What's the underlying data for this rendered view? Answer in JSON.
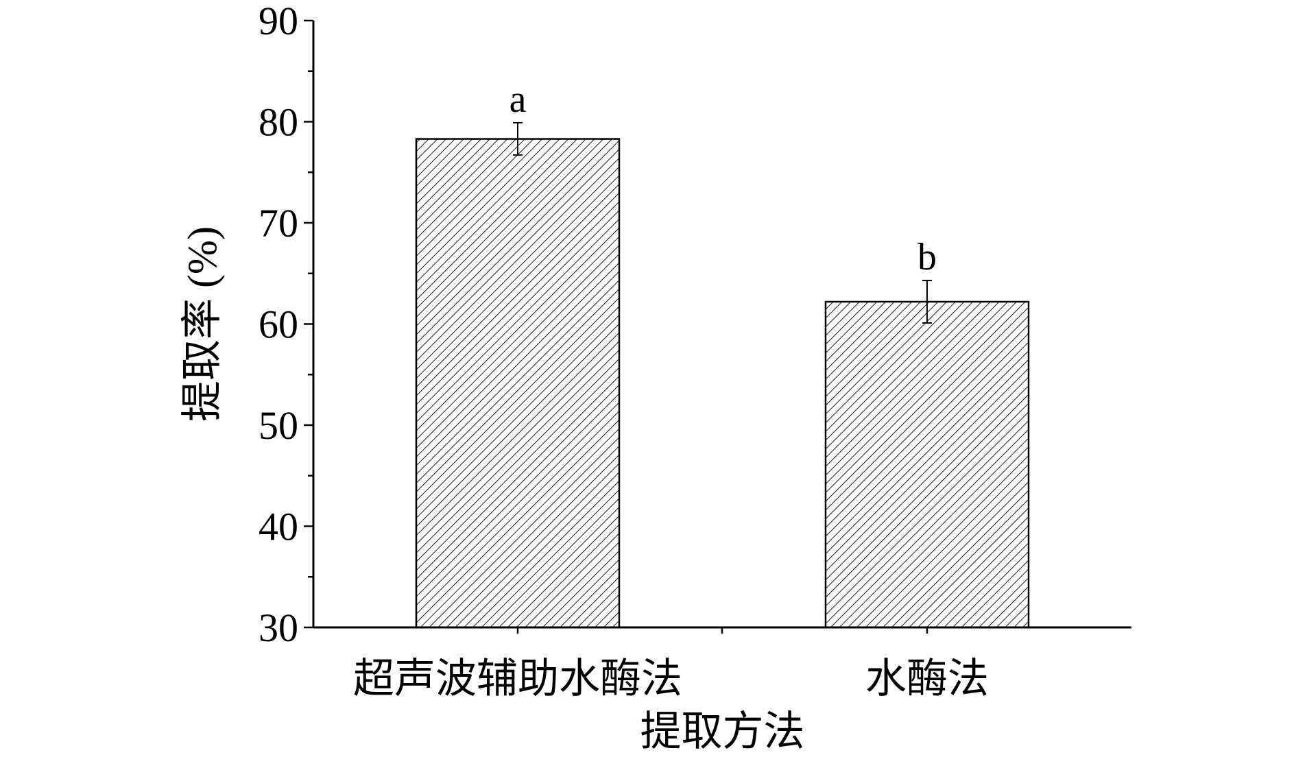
{
  "chart_data": {
    "type": "bar",
    "title": "",
    "xlabel": "提取方法",
    "ylabel": "提取率 (%)",
    "categories": [
      "超声波辅助水酶法",
      "水酶法"
    ],
    "series": [
      {
        "values": [
          78.3,
          62.2
        ],
        "errors": [
          1.6,
          2.1
        ],
        "significance": [
          "a",
          "b"
        ]
      }
    ],
    "ylim": [
      30,
      90
    ],
    "yticks": [
      30,
      40,
      50,
      60,
      70,
      80,
      90
    ],
    "grid": false,
    "legend": "none",
    "bar_fill": "diagonal-hatch",
    "colors": {
      "bar_stroke": "#000000",
      "hatch": "#000000",
      "background": "#ffffff"
    }
  }
}
